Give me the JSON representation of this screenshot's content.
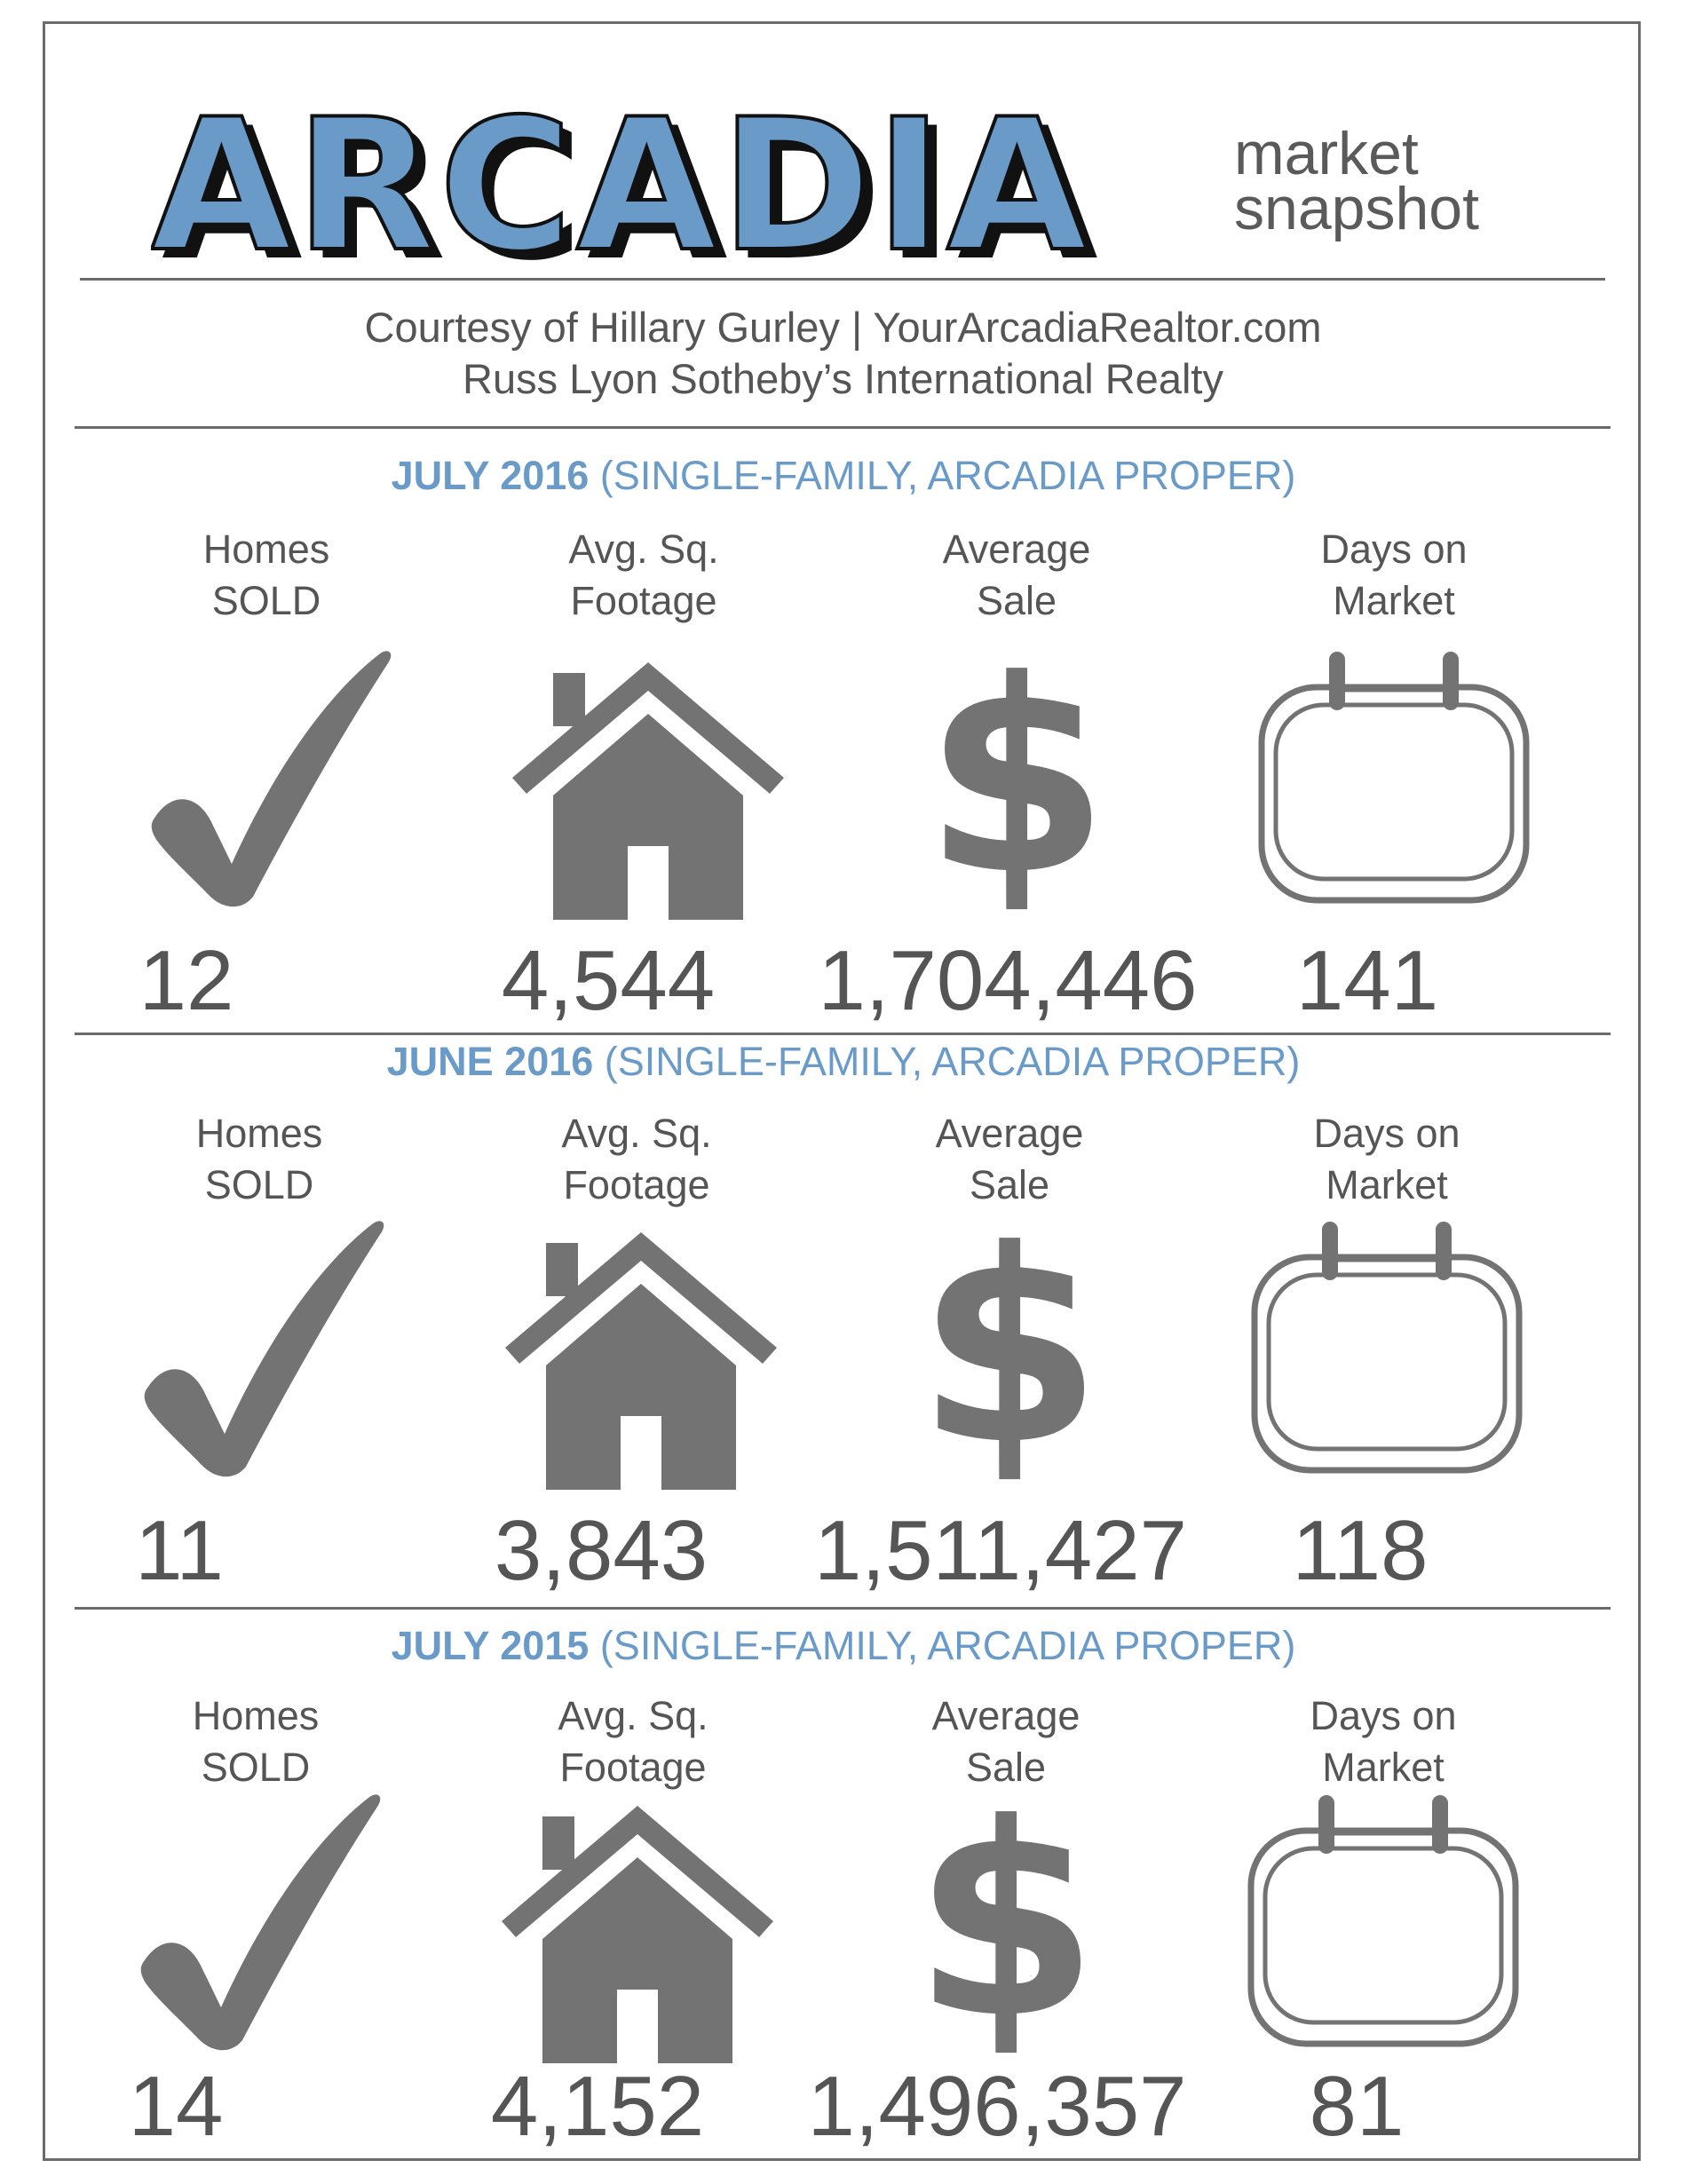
{
  "header": {
    "logo_text": "ARCADIA",
    "tagline_line1": "market",
    "tagline_line2": "snapshot",
    "courtesy_line1": "Courtesy of Hillary Gurley | YourArcadiaRealtor.com",
    "courtesy_line2": "Russ Lyon Sotheby’s International Realty"
  },
  "colors": {
    "brand_blue": "#6a9bc8",
    "icon_gray": "#737373",
    "text_gray": "#555555"
  },
  "sections": [
    {
      "title_strong": "JULY 2016",
      "title_rest": " (SINGLE-FAMILY, ARCADIA PROPER)",
      "stats": [
        {
          "label_line1": "Homes",
          "label_line2": "SOLD",
          "icon": "checkmark-icon",
          "value": "12"
        },
        {
          "label_line1": "Avg. Sq.",
          "label_line2": "Footage",
          "icon": "house-icon",
          "value": "4,544"
        },
        {
          "label_line1": "Average",
          "label_line2": "Sale",
          "icon": "dollar-icon",
          "value": "1,704,446"
        },
        {
          "label_line1": "Days on",
          "label_line2": "Market",
          "icon": "calendar-icon",
          "value": "141"
        }
      ]
    },
    {
      "title_strong": "JUNE 2016",
      "title_rest": " (SINGLE-FAMILY, ARCADIA PROPER)",
      "stats": [
        {
          "label_line1": "Homes",
          "label_line2": "SOLD",
          "icon": "checkmark-icon",
          "value": "11"
        },
        {
          "label_line1": "Avg. Sq.",
          "label_line2": "Footage",
          "icon": "house-icon",
          "value": "3,843"
        },
        {
          "label_line1": "Average",
          "label_line2": "Sale",
          "icon": "dollar-icon",
          "value": "1,511,427"
        },
        {
          "label_line1": "Days on",
          "label_line2": "Market",
          "icon": "calendar-icon",
          "value": "118"
        }
      ]
    },
    {
      "title_strong": "JULY 2015",
      "title_rest": " (SINGLE-FAMILY, ARCADIA PROPER)",
      "stats": [
        {
          "label_line1": "Homes",
          "label_line2": "SOLD",
          "icon": "checkmark-icon",
          "value": "14"
        },
        {
          "label_line1": "Avg. Sq.",
          "label_line2": "Footage",
          "icon": "house-icon",
          "value": "4,152"
        },
        {
          "label_line1": "Average",
          "label_line2": "Sale",
          "icon": "dollar-icon",
          "value": "1,496,357"
        },
        {
          "label_line1": "Days on",
          "label_line2": "Market",
          "icon": "calendar-icon",
          "value": "81"
        }
      ]
    }
  ]
}
